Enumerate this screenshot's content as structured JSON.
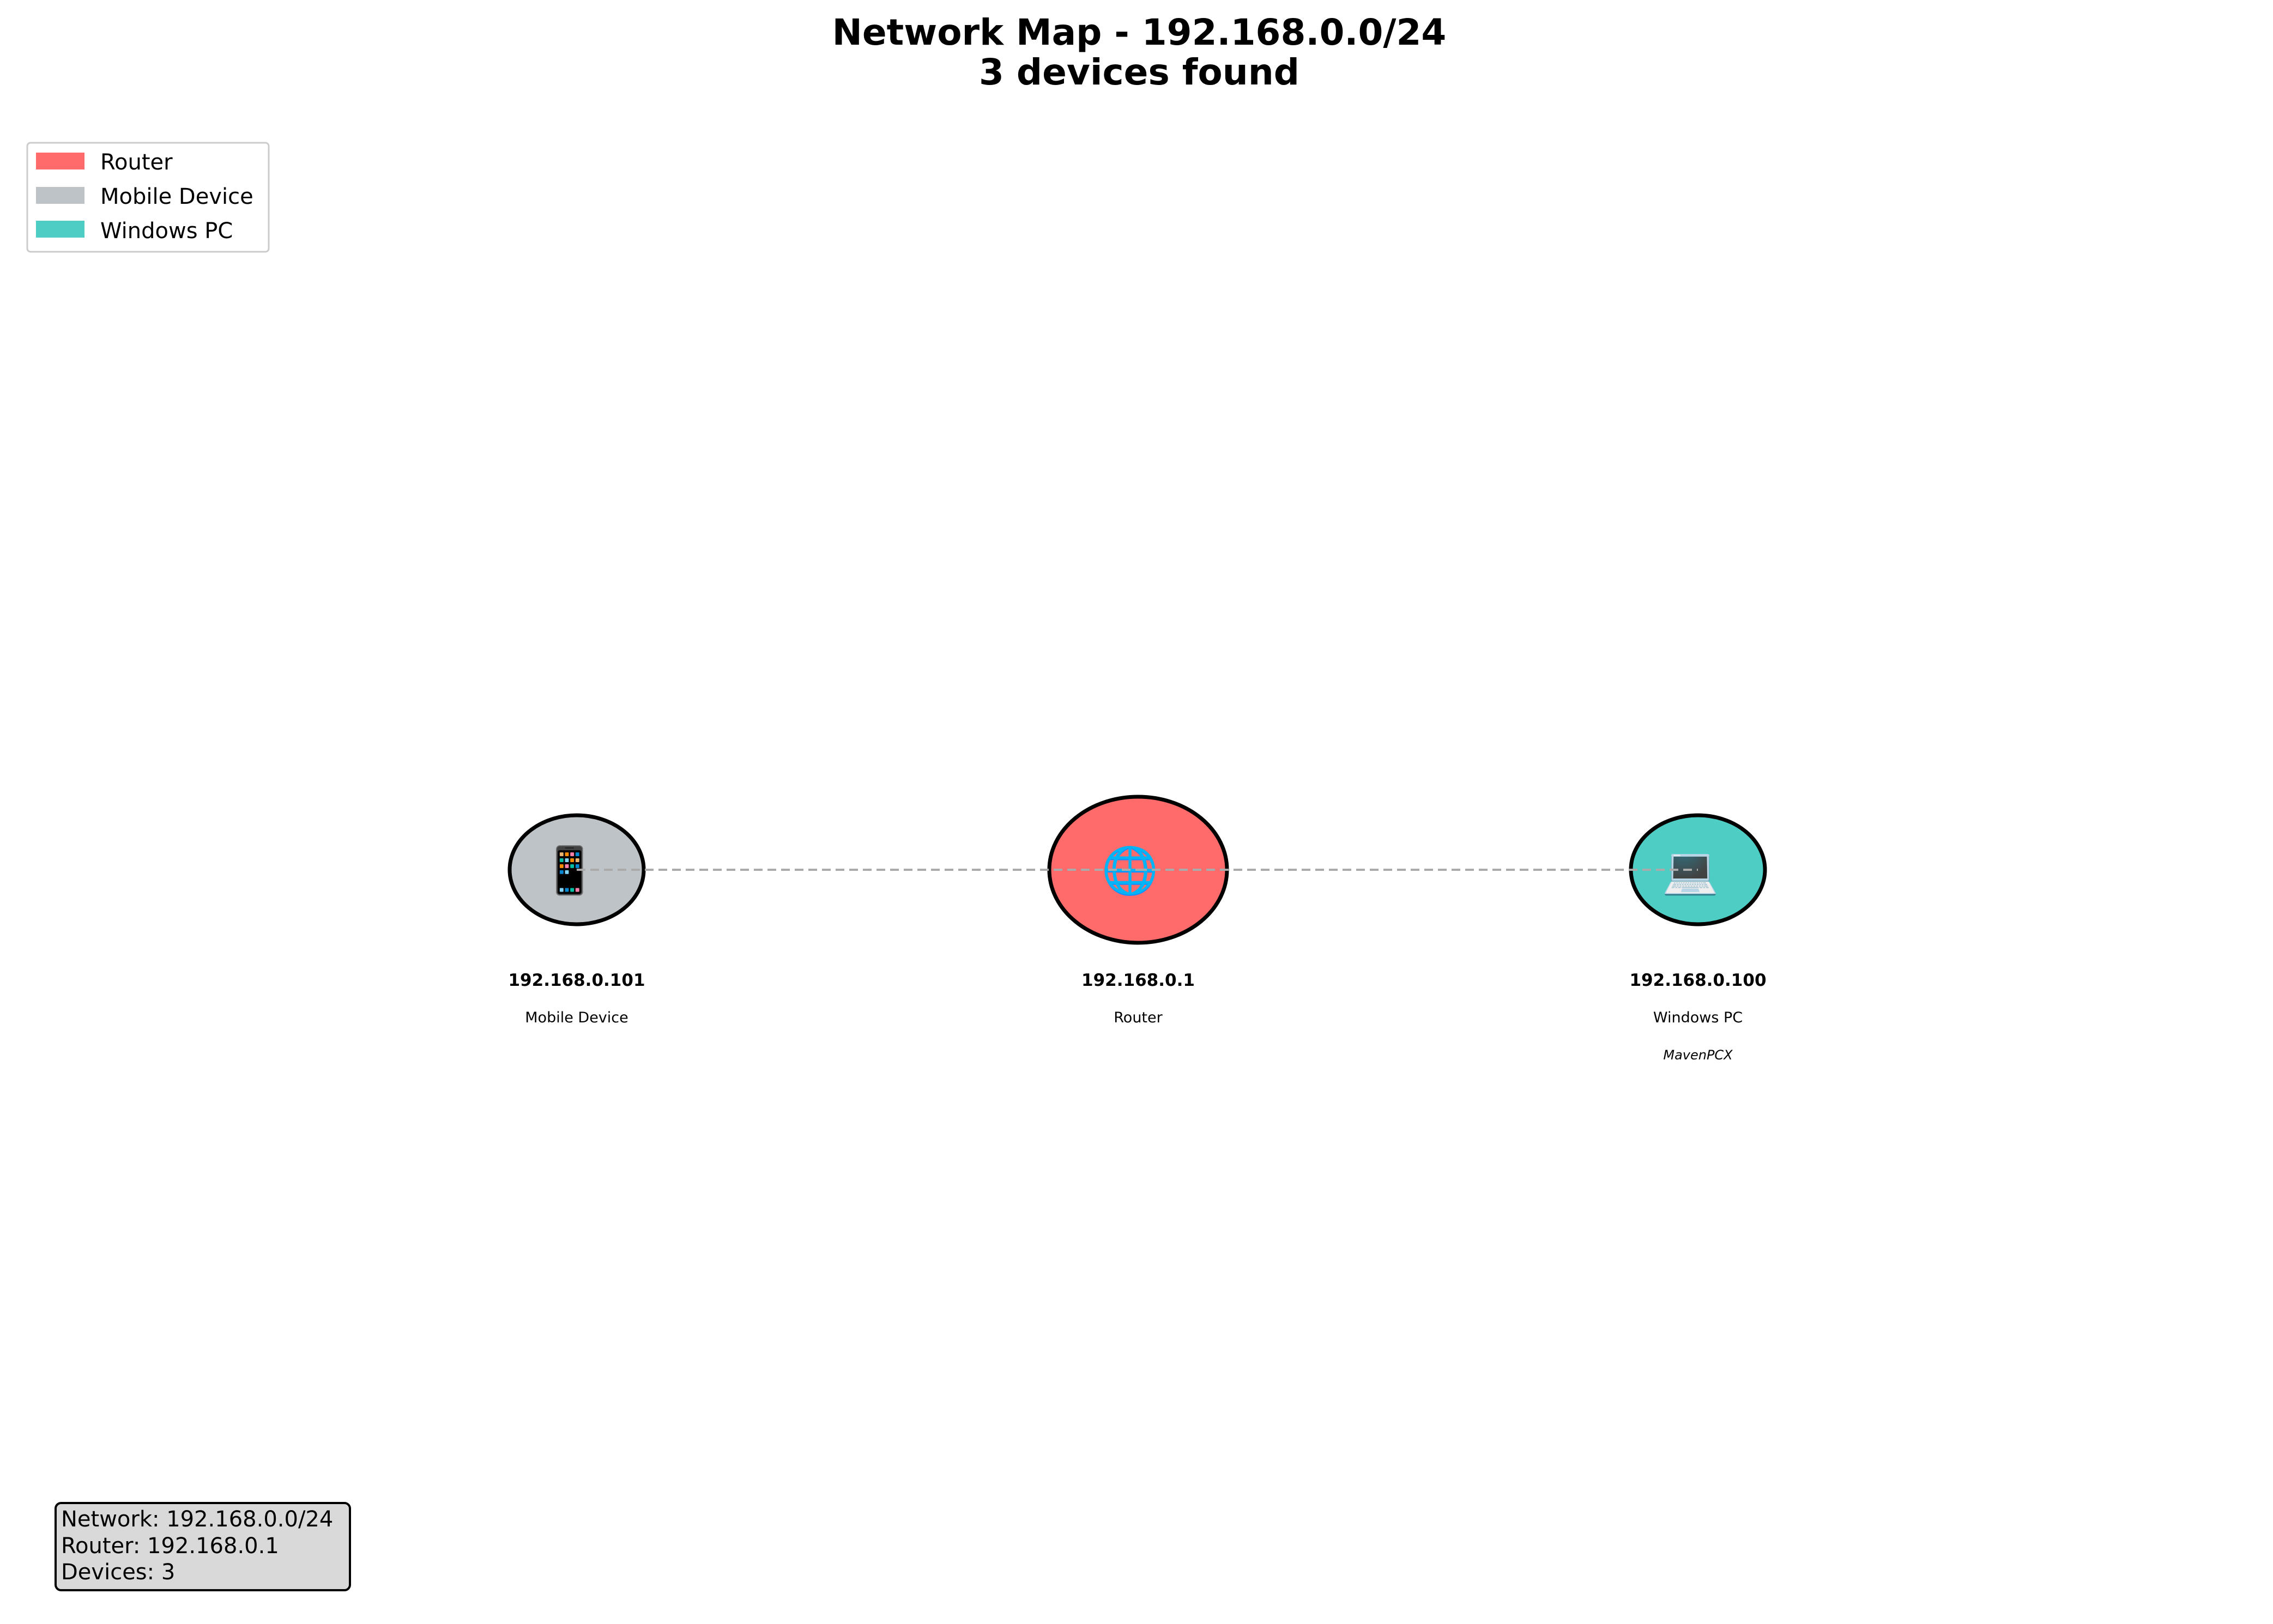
{
  "title": {
    "line1": "Network Map - 192.168.0.0/24",
    "line2": "3 devices found"
  },
  "legend": {
    "placement": "top-left",
    "items": [
      {
        "label": "Router",
        "color": "#ff6b6b"
      },
      {
        "label": "Mobile Device",
        "color": "#bdc3c7"
      },
      {
        "label": "Windows PC",
        "color": "#4ecdc4"
      }
    ]
  },
  "devices": [
    {
      "ip": "192.168.0.101",
      "type": "Mobile Device",
      "hostname": "",
      "color": "#bdc3c7",
      "role": "client",
      "icon": "mobile-phone-icon",
      "glyph": "📱"
    },
    {
      "ip": "192.168.0.1",
      "type": "Router",
      "hostname": "",
      "color": "#ff6b6b",
      "role": "gateway",
      "icon": "router-icon",
      "glyph": "🌐"
    },
    {
      "ip": "192.168.0.100",
      "type": "Windows PC",
      "hostname": "MavenPCX",
      "color": "#4ecdc4",
      "role": "client",
      "icon": "desktop-computer-icon",
      "glyph": "💻"
    }
  ],
  "connections": [
    {
      "from": "192.168.0.101",
      "to": "192.168.0.1",
      "style": "dashed",
      "color": "#aaaaaa"
    },
    {
      "from": "192.168.0.1",
      "to": "192.168.0.100",
      "style": "dashed",
      "color": "#aaaaaa"
    }
  ],
  "summary": {
    "network": "Network: 192.168.0.0/24",
    "router": "Router: 192.168.0.1",
    "devices": "Devices: 3",
    "background": "#d9d9d9"
  }
}
